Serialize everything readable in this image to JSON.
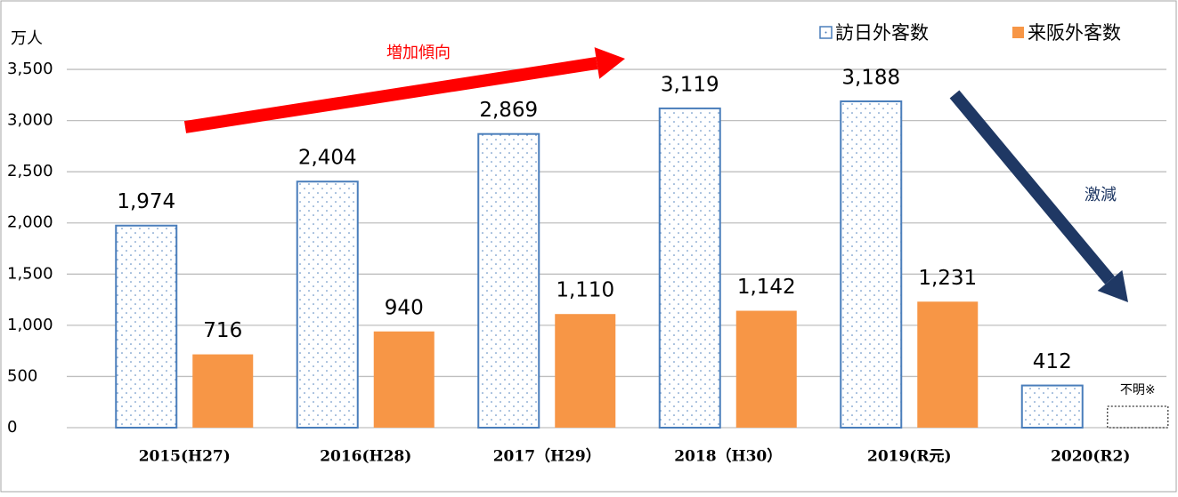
{
  "chart_data": {
    "type": "bar",
    "y_label": "万人",
    "categories": [
      "2015(H27)",
      "2016(H28)",
      "2017（H29）",
      "2018（H30）",
      "2019(R元)",
      "2020(R2)"
    ],
    "series": [
      {
        "name": "訪日外客数",
        "color": "#4a7ebb",
        "pattern": "dotted",
        "values": [
          1974,
          2404,
          2869,
          3119,
          3188,
          412
        ],
        "value_labels": [
          "1,974",
          "2,404",
          "2,869",
          "3,119",
          "3,188",
          "412"
        ]
      },
      {
        "name": "来阪外客数",
        "color": "#f79646",
        "values": [
          716,
          940,
          1110,
          1142,
          1231,
          null
        ],
        "value_labels": [
          "716",
          "940",
          "1,110",
          "1,142",
          "1,231",
          "不明※"
        ]
      }
    ],
    "ylim": [
      0,
      3900
    ],
    "yticks": [
      0,
      500,
      {
        "value": 1000,
        "label": "1,000"
      },
      {
        "value": 1500,
        "label": "1,500"
      },
      {
        "value": 2000,
        "label": "2,000"
      },
      {
        "value": 2500,
        "label": "2,500"
      },
      {
        "value": 3000,
        "label": "3,000"
      },
      {
        "value": 3500,
        "label": "3,500"
      }
    ],
    "grid": true,
    "annotations": [
      {
        "text": "増加傾向",
        "color": "#ff0000"
      },
      {
        "text": "激減",
        "color": "#1f3864"
      }
    ]
  }
}
